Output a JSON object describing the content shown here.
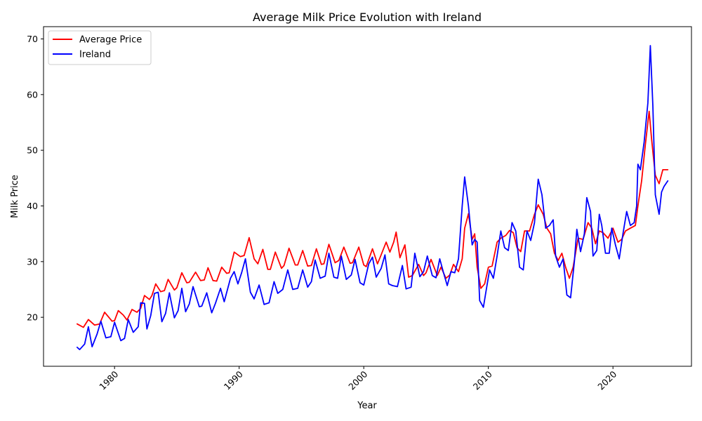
{
  "chart_data": {
    "type": "line",
    "title": "Average Milk Price Evolution with Ireland",
    "xlabel": "Year",
    "ylabel": "Milk Price",
    "xlim": [
      1974.3,
      2026.3
    ],
    "ylim": [
      11.2,
      72.2
    ],
    "xticks": [
      1980,
      1990,
      2000,
      2010,
      2020
    ],
    "yticks": [
      20,
      30,
      40,
      50,
      60,
      70
    ],
    "grid": false,
    "legend_position": "top-left",
    "series": [
      {
        "name": "Average Price",
        "color": "#ff0000",
        "points": [
          [
            1977.0,
            18.8
          ],
          [
            1977.5,
            18.2
          ],
          [
            1977.9,
            19.6
          ],
          [
            1978.4,
            18.6
          ],
          [
            1978.8,
            18.8
          ],
          [
            1979.2,
            20.9
          ],
          [
            1979.8,
            19.3
          ],
          [
            1980.0,
            19.4
          ],
          [
            1980.3,
            21.2
          ],
          [
            1980.7,
            20.4
          ],
          [
            1981.0,
            19.5
          ],
          [
            1981.4,
            21.4
          ],
          [
            1981.8,
            20.9
          ],
          [
            1982.1,
            21.6
          ],
          [
            1982.4,
            23.9
          ],
          [
            1982.8,
            23.2
          ],
          [
            1983.0,
            23.9
          ],
          [
            1983.3,
            26.0
          ],
          [
            1983.7,
            24.6
          ],
          [
            1984.0,
            24.8
          ],
          [
            1984.3,
            26.8
          ],
          [
            1984.8,
            24.9
          ],
          [
            1985.0,
            25.3
          ],
          [
            1985.4,
            28.0
          ],
          [
            1985.8,
            26.2
          ],
          [
            1986.0,
            26.3
          ],
          [
            1986.5,
            28.1
          ],
          [
            1986.9,
            26.6
          ],
          [
            1987.2,
            26.7
          ],
          [
            1987.5,
            28.9
          ],
          [
            1987.9,
            26.6
          ],
          [
            1988.2,
            26.5
          ],
          [
            1988.6,
            29.0
          ],
          [
            1989.0,
            27.9
          ],
          [
            1989.2,
            28.0
          ],
          [
            1989.6,
            31.7
          ],
          [
            1990.1,
            30.9
          ],
          [
            1990.4,
            31.1
          ],
          [
            1990.8,
            34.3
          ],
          [
            1991.2,
            30.5
          ],
          [
            1991.5,
            29.6
          ],
          [
            1991.9,
            32.2
          ],
          [
            1992.3,
            28.6
          ],
          [
            1992.5,
            28.6
          ],
          [
            1992.9,
            31.7
          ],
          [
            1993.4,
            28.8
          ],
          [
            1993.6,
            29.3
          ],
          [
            1994.0,
            32.4
          ],
          [
            1994.5,
            29.4
          ],
          [
            1994.7,
            29.4
          ],
          [
            1995.1,
            32.0
          ],
          [
            1995.5,
            29.2
          ],
          [
            1995.8,
            29.3
          ],
          [
            1996.2,
            32.3
          ],
          [
            1996.6,
            29.5
          ],
          [
            1996.8,
            29.6
          ],
          [
            1997.2,
            33.1
          ],
          [
            1997.7,
            29.8
          ],
          [
            1998.0,
            30.2
          ],
          [
            1998.4,
            32.6
          ],
          [
            1998.9,
            29.7
          ],
          [
            1999.1,
            29.8
          ],
          [
            1999.6,
            32.6
          ],
          [
            2000.0,
            29.4
          ],
          [
            2000.2,
            29.1
          ],
          [
            2000.7,
            32.3
          ],
          [
            2001.1,
            29.6
          ],
          [
            2001.3,
            30.7
          ],
          [
            2001.8,
            33.5
          ],
          [
            2002.1,
            31.7
          ],
          [
            2002.4,
            33.5
          ],
          [
            2002.6,
            35.3
          ],
          [
            2002.9,
            30.7
          ],
          [
            2003.3,
            33.0
          ],
          [
            2003.6,
            27.2
          ],
          [
            2003.9,
            27.5
          ],
          [
            2004.4,
            29.5
          ],
          [
            2004.8,
            27.5
          ],
          [
            2005.0,
            28.0
          ],
          [
            2005.4,
            30.4
          ],
          [
            2005.9,
            27.5
          ],
          [
            2006.2,
            29.0
          ],
          [
            2006.6,
            27.0
          ],
          [
            2006.9,
            27.6
          ],
          [
            2007.2,
            29.5
          ],
          [
            2007.6,
            28.2
          ],
          [
            2007.9,
            30.5
          ],
          [
            2008.1,
            36.0
          ],
          [
            2008.4,
            38.6
          ],
          [
            2008.7,
            34.0
          ],
          [
            2008.9,
            35.0
          ],
          [
            2009.1,
            29.0
          ],
          [
            2009.4,
            25.2
          ],
          [
            2009.7,
            26.0
          ],
          [
            2010.0,
            29.0
          ],
          [
            2010.3,
            29.2
          ],
          [
            2010.7,
            33.5
          ],
          [
            2011.0,
            34.2
          ],
          [
            2011.4,
            34.7
          ],
          [
            2011.7,
            35.6
          ],
          [
            2012.0,
            35.2
          ],
          [
            2012.3,
            32.5
          ],
          [
            2012.6,
            31.8
          ],
          [
            2012.9,
            35.5
          ],
          [
            2013.3,
            35.5
          ],
          [
            2013.7,
            38.5
          ],
          [
            2014.0,
            40.2
          ],
          [
            2014.4,
            38.5
          ],
          [
            2014.7,
            36.0
          ],
          [
            2015.0,
            35.0
          ],
          [
            2015.3,
            31.5
          ],
          [
            2015.6,
            30.2
          ],
          [
            2015.9,
            31.5
          ],
          [
            2016.2,
            29.0
          ],
          [
            2016.5,
            27.0
          ],
          [
            2016.8,
            29.0
          ],
          [
            2017.2,
            34.2
          ],
          [
            2017.6,
            34.0
          ],
          [
            2018.0,
            37.0
          ],
          [
            2018.3,
            36.0
          ],
          [
            2018.6,
            33.2
          ],
          [
            2018.9,
            35.5
          ],
          [
            2019.2,
            35.2
          ],
          [
            2019.6,
            34.2
          ],
          [
            2020.0,
            36.0
          ],
          [
            2020.4,
            33.5
          ],
          [
            2020.7,
            34.0
          ],
          [
            2021.0,
            35.5
          ],
          [
            2021.4,
            36.0
          ],
          [
            2021.8,
            36.5
          ],
          [
            2022.0,
            40.0
          ],
          [
            2022.3,
            44.5
          ],
          [
            2022.6,
            51.0
          ],
          [
            2022.9,
            57.0
          ],
          [
            2023.1,
            52.0
          ],
          [
            2023.4,
            45.5
          ],
          [
            2023.7,
            44.0
          ],
          [
            2024.0,
            46.5
          ],
          [
            2024.4,
            46.5
          ]
        ]
      },
      {
        "name": "Ireland",
        "color": "#0000ff",
        "points": [
          [
            1977.0,
            14.6
          ],
          [
            1977.2,
            14.2
          ],
          [
            1977.6,
            15.2
          ],
          [
            1977.9,
            18.3
          ],
          [
            1978.2,
            14.7
          ],
          [
            1978.6,
            17.0
          ],
          [
            1978.9,
            19.3
          ],
          [
            1979.3,
            16.3
          ],
          [
            1979.7,
            16.5
          ],
          [
            1980.0,
            19.1
          ],
          [
            1980.5,
            15.8
          ],
          [
            1980.8,
            16.2
          ],
          [
            1981.1,
            19.6
          ],
          [
            1981.5,
            17.3
          ],
          [
            1981.9,
            18.3
          ],
          [
            1982.1,
            22.6
          ],
          [
            1982.4,
            22.5
          ],
          [
            1982.6,
            17.9
          ],
          [
            1982.9,
            20.3
          ],
          [
            1983.2,
            24.3
          ],
          [
            1983.5,
            24.5
          ],
          [
            1983.8,
            19.2
          ],
          [
            1984.1,
            20.7
          ],
          [
            1984.4,
            24.4
          ],
          [
            1984.8,
            19.9
          ],
          [
            1985.1,
            21.2
          ],
          [
            1985.4,
            25.2
          ],
          [
            1985.7,
            21.0
          ],
          [
            1986.0,
            22.4
          ],
          [
            1986.3,
            25.5
          ],
          [
            1986.8,
            21.9
          ],
          [
            1987.0,
            22.0
          ],
          [
            1987.4,
            24.4
          ],
          [
            1987.8,
            20.8
          ],
          [
            1988.1,
            22.5
          ],
          [
            1988.5,
            25.2
          ],
          [
            1988.8,
            22.8
          ],
          [
            1989.3,
            27.0
          ],
          [
            1989.6,
            28.2
          ],
          [
            1989.9,
            26.0
          ],
          [
            1990.2,
            28.0
          ],
          [
            1990.5,
            30.5
          ],
          [
            1990.9,
            24.5
          ],
          [
            1991.2,
            23.3
          ],
          [
            1991.6,
            25.8
          ],
          [
            1992.0,
            22.3
          ],
          [
            1992.4,
            22.6
          ],
          [
            1992.8,
            26.4
          ],
          [
            1993.1,
            24.3
          ],
          [
            1993.5,
            25.0
          ],
          [
            1993.9,
            28.5
          ],
          [
            1994.3,
            25.0
          ],
          [
            1994.7,
            25.2
          ],
          [
            1995.1,
            28.5
          ],
          [
            1995.5,
            25.4
          ],
          [
            1995.8,
            26.4
          ],
          [
            1996.1,
            30.3
          ],
          [
            1996.5,
            27.0
          ],
          [
            1996.9,
            27.4
          ],
          [
            1997.2,
            31.5
          ],
          [
            1997.6,
            27.2
          ],
          [
            1997.9,
            27.0
          ],
          [
            1998.2,
            31.0
          ],
          [
            1998.6,
            26.8
          ],
          [
            1999.0,
            27.6
          ],
          [
            1999.3,
            30.4
          ],
          [
            1999.7,
            26.2
          ],
          [
            2000.0,
            25.8
          ],
          [
            2000.4,
            29.6
          ],
          [
            2000.7,
            30.8
          ],
          [
            2001.0,
            27.2
          ],
          [
            2001.4,
            28.8
          ],
          [
            2001.7,
            31.2
          ],
          [
            2002.0,
            26.0
          ],
          [
            2002.3,
            25.7
          ],
          [
            2002.7,
            25.5
          ],
          [
            2003.1,
            29.3
          ],
          [
            2003.4,
            25.1
          ],
          [
            2003.8,
            25.4
          ],
          [
            2004.1,
            31.5
          ],
          [
            2004.5,
            27.3
          ],
          [
            2004.8,
            28.2
          ],
          [
            2005.1,
            31.0
          ],
          [
            2005.5,
            27.5
          ],
          [
            2005.8,
            27.1
          ],
          [
            2006.1,
            30.5
          ],
          [
            2006.4,
            28.0
          ],
          [
            2006.7,
            25.7
          ],
          [
            2007.0,
            28.2
          ],
          [
            2007.3,
            28.0
          ],
          [
            2007.6,
            30.5
          ],
          [
            2007.9,
            40.0
          ],
          [
            2008.1,
            45.2
          ],
          [
            2008.4,
            40.0
          ],
          [
            2008.7,
            33.0
          ],
          [
            2008.9,
            34.0
          ],
          [
            2009.1,
            33.5
          ],
          [
            2009.3,
            23.0
          ],
          [
            2009.6,
            21.8
          ],
          [
            2009.8,
            24.5
          ],
          [
            2010.1,
            28.5
          ],
          [
            2010.4,
            27.0
          ],
          [
            2010.7,
            31.0
          ],
          [
            2011.0,
            35.5
          ],
          [
            2011.3,
            32.5
          ],
          [
            2011.6,
            32.0
          ],
          [
            2011.9,
            37.0
          ],
          [
            2012.2,
            35.5
          ],
          [
            2012.5,
            29.0
          ],
          [
            2012.8,
            28.5
          ],
          [
            2013.1,
            35.5
          ],
          [
            2013.4,
            33.8
          ],
          [
            2013.7,
            37.0
          ],
          [
            2014.0,
            44.8
          ],
          [
            2014.3,
            42.0
          ],
          [
            2014.6,
            36.0
          ],
          [
            2014.9,
            36.5
          ],
          [
            2015.2,
            37.5
          ],
          [
            2015.4,
            31.0
          ],
          [
            2015.7,
            29.0
          ],
          [
            2016.0,
            30.5
          ],
          [
            2016.3,
            24.0
          ],
          [
            2016.6,
            23.5
          ],
          [
            2016.9,
            30.0
          ],
          [
            2017.1,
            35.8
          ],
          [
            2017.4,
            31.8
          ],
          [
            2017.7,
            35.0
          ],
          [
            2017.9,
            41.5
          ],
          [
            2018.2,
            39.0
          ],
          [
            2018.4,
            31.0
          ],
          [
            2018.7,
            32.0
          ],
          [
            2018.9,
            38.5
          ],
          [
            2019.1,
            36.5
          ],
          [
            2019.4,
            31.5
          ],
          [
            2019.7,
            31.5
          ],
          [
            2019.9,
            36.0
          ],
          [
            2020.2,
            33.0
          ],
          [
            2020.5,
            30.5
          ],
          [
            2020.8,
            35.0
          ],
          [
            2021.1,
            39.0
          ],
          [
            2021.4,
            36.5
          ],
          [
            2021.7,
            37.0
          ],
          [
            2021.9,
            40.0
          ],
          [
            2022.0,
            47.5
          ],
          [
            2022.2,
            46.5
          ],
          [
            2022.5,
            51.5
          ],
          [
            2022.8,
            58.5
          ],
          [
            2023.0,
            68.8
          ],
          [
            2023.2,
            58.0
          ],
          [
            2023.4,
            42.0
          ],
          [
            2023.7,
            38.5
          ],
          [
            2023.9,
            42.5
          ],
          [
            2024.1,
            43.5
          ],
          [
            2024.4,
            44.5
          ]
        ]
      }
    ]
  }
}
